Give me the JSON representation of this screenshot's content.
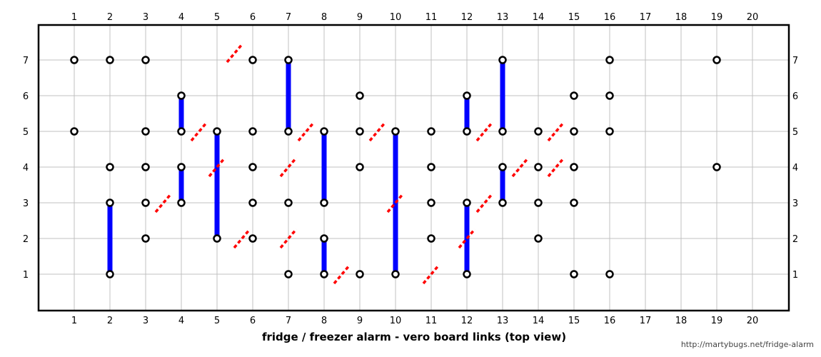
{
  "title": "fridge / freezer alarm - vero board links (top view)",
  "credit": "http://martybugs.net/fridge-alarm",
  "columns": [
    "1",
    "2",
    "3",
    "4",
    "5",
    "6",
    "7",
    "8",
    "9",
    "10",
    "11",
    "12",
    "13",
    "14",
    "15",
    "16",
    "17",
    "18",
    "19",
    "20"
  ],
  "rows": [
    "1",
    "2",
    "3",
    "4",
    "5",
    "6",
    "7"
  ],
  "colors": {
    "link": "#0000ff",
    "cut": "#ff0000",
    "grid": "#c0c0c0",
    "frame": "#000000",
    "hole": "#000000"
  },
  "holes": [
    [
      1,
      7
    ],
    [
      2,
      7
    ],
    [
      3,
      7
    ],
    [
      6,
      7
    ],
    [
      7,
      7
    ],
    [
      13,
      7
    ],
    [
      16,
      7
    ],
    [
      19,
      7
    ],
    [
      4,
      6
    ],
    [
      9,
      6
    ],
    [
      12,
      6
    ],
    [
      15,
      6
    ],
    [
      16,
      6
    ],
    [
      1,
      5
    ],
    [
      3,
      5
    ],
    [
      4,
      5
    ],
    [
      5,
      5
    ],
    [
      6,
      5
    ],
    [
      7,
      5
    ],
    [
      8,
      5
    ],
    [
      9,
      5
    ],
    [
      10,
      5
    ],
    [
      11,
      5
    ],
    [
      12,
      5
    ],
    [
      13,
      5
    ],
    [
      14,
      5
    ],
    [
      15,
      5
    ],
    [
      16,
      5
    ],
    [
      2,
      4
    ],
    [
      3,
      4
    ],
    [
      4,
      4
    ],
    [
      6,
      4
    ],
    [
      9,
      4
    ],
    [
      11,
      4
    ],
    [
      13,
      4
    ],
    [
      14,
      4
    ],
    [
      15,
      4
    ],
    [
      19,
      4
    ],
    [
      2,
      3
    ],
    [
      3,
      3
    ],
    [
      4,
      3
    ],
    [
      6,
      3
    ],
    [
      7,
      3
    ],
    [
      8,
      3
    ],
    [
      11,
      3
    ],
    [
      12,
      3
    ],
    [
      13,
      3
    ],
    [
      14,
      3
    ],
    [
      15,
      3
    ],
    [
      3,
      2
    ],
    [
      5,
      2
    ],
    [
      6,
      2
    ],
    [
      8,
      2
    ],
    [
      11,
      2
    ],
    [
      14,
      2
    ],
    [
      2,
      1
    ],
    [
      7,
      1
    ],
    [
      8,
      1
    ],
    [
      9,
      1
    ],
    [
      10,
      1
    ],
    [
      12,
      1
    ],
    [
      15,
      1
    ],
    [
      16,
      1
    ]
  ],
  "links": [
    {
      "col": 2,
      "from": 1,
      "to": 3
    },
    {
      "col": 4,
      "from": 5,
      "to": 6
    },
    {
      "col": 4,
      "from": 3,
      "to": 4
    },
    {
      "col": 5,
      "from": 2,
      "to": 5
    },
    {
      "col": 7,
      "from": 5,
      "to": 7
    },
    {
      "col": 8,
      "from": 3,
      "to": 5
    },
    {
      "col": 8,
      "from": 1,
      "to": 2
    },
    {
      "col": 10,
      "from": 1,
      "to": 5
    },
    {
      "col": 12,
      "from": 5,
      "to": 6
    },
    {
      "col": 12,
      "from": 1,
      "to": 3
    },
    {
      "col": 13,
      "from": 5,
      "to": 7
    },
    {
      "col": 13,
      "from": 3,
      "to": 4
    }
  ],
  "cuts": [
    [
      5.5,
      7.2
    ],
    [
      4.5,
      5
    ],
    [
      7.5,
      5
    ],
    [
      9.5,
      5
    ],
    [
      12.5,
      5
    ],
    [
      14.5,
      5
    ],
    [
      5.0,
      4
    ],
    [
      7.0,
      4
    ],
    [
      13.5,
      4
    ],
    [
      14.5,
      4
    ],
    [
      3.5,
      3
    ],
    [
      10.0,
      3
    ],
    [
      12.5,
      3
    ],
    [
      5.7,
      2
    ],
    [
      7.0,
      2
    ],
    [
      12.0,
      2
    ],
    [
      8.5,
      1
    ],
    [
      11.0,
      1
    ]
  ]
}
